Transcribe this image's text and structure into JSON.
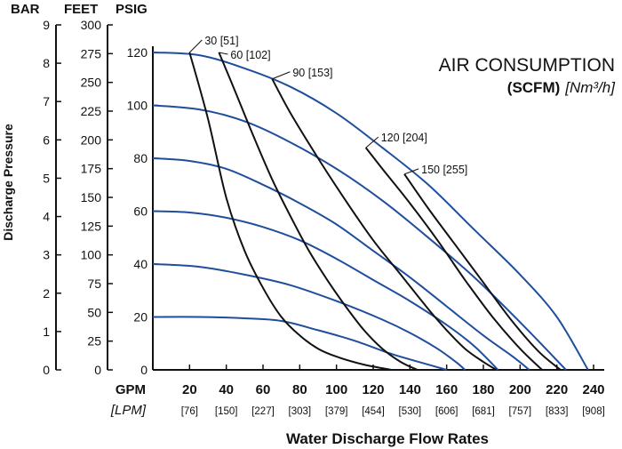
{
  "chart_data": {
    "type": "line",
    "title": "AIR CONSUMPTION",
    "subtitle_bold": "(SCFM)",
    "subtitle_italic": "[Nm³/h]",
    "xlabel": "Water Discharge Flow Rates",
    "ylabel": "Discharge Pressure",
    "x_unit_primary": "GPM",
    "x_unit_secondary": "[LPM]",
    "y_unit_headers": [
      "BAR",
      "FEET",
      "PSIG"
    ],
    "xlim": [
      0,
      240
    ],
    "ylim": [
      0,
      120
    ],
    "x_ticks": [
      {
        "gpm": "20",
        "lpm": "[76]"
      },
      {
        "gpm": "40",
        "lpm": "[150]"
      },
      {
        "gpm": "60",
        "lpm": "[227]"
      },
      {
        "gpm": "80",
        "lpm": "[303]"
      },
      {
        "gpm": "100",
        "lpm": "[379]"
      },
      {
        "gpm": "120",
        "lpm": "[454]"
      },
      {
        "gpm": "140",
        "lpm": "[530]"
      },
      {
        "gpm": "160",
        "lpm": "[606]"
      },
      {
        "gpm": "180",
        "lpm": "[681]"
      },
      {
        "gpm": "200",
        "lpm": "[757]"
      },
      {
        "gpm": "220",
        "lpm": "[833]"
      },
      {
        "gpm": "240",
        "lpm": "[908]"
      }
    ],
    "psig_ticks": [
      "0",
      "20",
      "40",
      "60",
      "80",
      "100",
      "120"
    ],
    "feet_ticks": [
      "0",
      "25",
      "50",
      "75",
      "100",
      "125",
      "150",
      "175",
      "200",
      "225",
      "250",
      "275",
      "300"
    ],
    "bar_ticks": [
      "0",
      "1",
      "2",
      "3",
      "4",
      "5",
      "6",
      "7",
      "8",
      "9"
    ],
    "inlet_pressure_curves": [
      {
        "color": "#1f4e9c",
        "points": [
          [
            0,
            120
          ],
          [
            25,
            119
          ],
          [
            50,
            114
          ],
          [
            75,
            107
          ],
          [
            100,
            97
          ],
          [
            125,
            84
          ],
          [
            150,
            70
          ],
          [
            175,
            53
          ],
          [
            200,
            36
          ],
          [
            220,
            20
          ],
          [
            237,
            0
          ]
        ]
      },
      {
        "color": "#1f4e9c",
        "points": [
          [
            0,
            100
          ],
          [
            25,
            98.5
          ],
          [
            50,
            94
          ],
          [
            75,
            86
          ],
          [
            100,
            76
          ],
          [
            125,
            64
          ],
          [
            150,
            50
          ],
          [
            175,
            35
          ],
          [
            200,
            18
          ],
          [
            225,
            0
          ]
        ]
      },
      {
        "color": "#1f4e9c",
        "points": [
          [
            0,
            80
          ],
          [
            20,
            79
          ],
          [
            40,
            76
          ],
          [
            60,
            70
          ],
          [
            80,
            63
          ],
          [
            100,
            55
          ],
          [
            120,
            45
          ],
          [
            140,
            35
          ],
          [
            160,
            24
          ],
          [
            180,
            13
          ],
          [
            196,
            5
          ],
          [
            205,
            0
          ]
        ]
      },
      {
        "color": "#1f4e9c",
        "points": [
          [
            0,
            60
          ],
          [
            20,
            59.5
          ],
          [
            40,
            57.5
          ],
          [
            60,
            54
          ],
          [
            80,
            49
          ],
          [
            100,
            42
          ],
          [
            120,
            34
          ],
          [
            140,
            26
          ],
          [
            160,
            17
          ],
          [
            175,
            9
          ],
          [
            188,
            0
          ]
        ]
      },
      {
        "color": "#1f4e9c",
        "points": [
          [
            0,
            40
          ],
          [
            25,
            39
          ],
          [
            50,
            36
          ],
          [
            75,
            32
          ],
          [
            100,
            26
          ],
          [
            125,
            19
          ],
          [
            140,
            14
          ],
          [
            155,
            8
          ],
          [
            165,
            3
          ],
          [
            170,
            0
          ]
        ]
      },
      {
        "color": "#1f4e9c",
        "points": [
          [
            0,
            20
          ],
          [
            25,
            20
          ],
          [
            50,
            19.5
          ],
          [
            70,
            18.5
          ],
          [
            90,
            15
          ],
          [
            110,
            11
          ],
          [
            130,
            6
          ],
          [
            150,
            2
          ],
          [
            160,
            0
          ]
        ]
      }
    ],
    "air_consumption_curves": [
      {
        "label": "30 [51]",
        "color": "#111111",
        "points": [
          [
            20,
            120
          ],
          [
            30,
            95
          ],
          [
            40,
            65
          ],
          [
            50,
            45
          ],
          [
            60,
            31
          ],
          [
            70,
            20
          ],
          [
            80,
            13
          ],
          [
            90,
            8
          ],
          [
            100,
            5
          ],
          [
            115,
            2
          ],
          [
            130,
            0
          ]
        ]
      },
      {
        "label": "60 [102]",
        "color": "#111111",
        "points": [
          [
            36,
            120
          ],
          [
            45,
            105
          ],
          [
            55,
            88
          ],
          [
            65,
            72
          ],
          [
            75,
            58
          ],
          [
            85,
            45
          ],
          [
            95,
            34
          ],
          [
            105,
            24
          ],
          [
            115,
            15
          ],
          [
            125,
            8
          ],
          [
            135,
            3
          ],
          [
            144,
            0
          ]
        ]
      },
      {
        "label": "90 [153]",
        "color": "#111111",
        "points": [
          [
            65,
            110
          ],
          [
            75,
            97
          ],
          [
            90,
            80
          ],
          [
            105,
            64
          ],
          [
            120,
            49
          ],
          [
            135,
            36
          ],
          [
            150,
            23
          ],
          [
            160,
            15
          ],
          [
            170,
            8
          ],
          [
            180,
            3
          ],
          [
            187,
            0
          ]
        ]
      },
      {
        "label": "120 [204]",
        "color": "#111111",
        "points": [
          [
            116,
            84
          ],
          [
            125,
            76
          ],
          [
            140,
            63
          ],
          [
            155,
            49
          ],
          [
            170,
            34
          ],
          [
            185,
            20
          ],
          [
            200,
            8
          ],
          [
            212,
            0
          ]
        ]
      },
      {
        "label": "150 [255]",
        "color": "#111111",
        "points": [
          [
            137,
            74
          ],
          [
            150,
            61
          ],
          [
            165,
            47
          ],
          [
            180,
            33
          ],
          [
            195,
            19
          ],
          [
            210,
            7
          ],
          [
            222,
            0
          ]
        ]
      }
    ]
  }
}
